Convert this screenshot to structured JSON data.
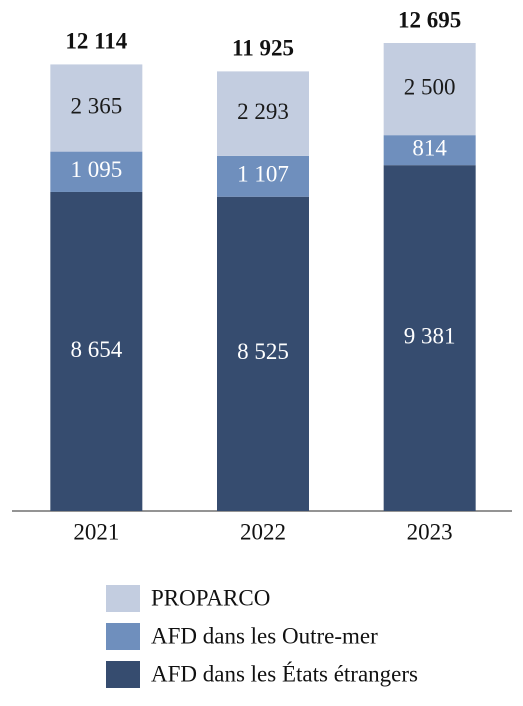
{
  "chart_data": {
    "type": "stacked-bar",
    "categories": [
      "2021",
      "2022",
      "2023"
    ],
    "series": [
      {
        "name": "AFD dans les États étrangers",
        "color": "#364c6f",
        "label_color": "#ffffff",
        "values": [
          8654,
          8525,
          9381
        ],
        "value_labels": [
          "8 654",
          "8 525",
          "9 381"
        ]
      },
      {
        "name": "AFD dans les Outre-mer",
        "color": "#6f8fbd",
        "label_color": "#ffffff",
        "values": [
          1095,
          1107,
          814
        ],
        "value_labels": [
          "1 095",
          "1 107",
          "814"
        ]
      },
      {
        "name": "PROPARCO",
        "color": "#c3cde0",
        "label_color": "#1a1a1a",
        "values": [
          2365,
          2293,
          2500
        ],
        "value_labels": [
          "2 365",
          "2 293",
          "2 500"
        ]
      }
    ],
    "totals": [
      12114,
      11925,
      12695
    ],
    "total_labels": [
      "12 114",
      "11 925",
      "12 695"
    ]
  }
}
